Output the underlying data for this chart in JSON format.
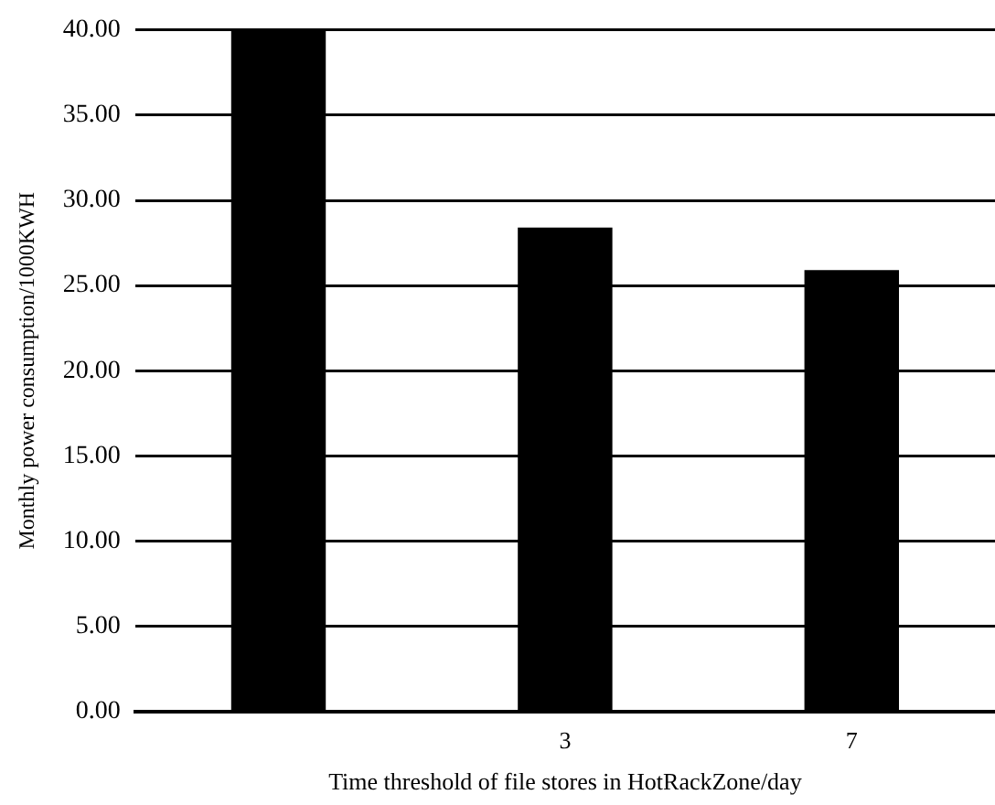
{
  "chart_data": {
    "type": "bar",
    "xlabel": "Time threshold of file stores in HotRackZone/day",
    "ylabel": "Monthly power consumption/1000KWH",
    "categories": [
      null,
      "3",
      "7"
    ],
    "series": [
      {
        "color": "#000000",
        "values": [
          40,
          28.4,
          25.9
        ]
      }
    ],
    "ylim": [
      0,
      40
    ],
    "yticks": [
      {
        "value": 0,
        "label": "0.00"
      },
      {
        "value": 5,
        "label": "5.00"
      },
      {
        "value": 10,
        "label": "10.00"
      },
      {
        "value": 15,
        "label": "15.00"
      },
      {
        "value": 20,
        "label": "20.00"
      },
      {
        "value": 25,
        "label": "25.00"
      },
      {
        "value": 30,
        "label": "30.00"
      },
      {
        "value": 35,
        "label": "35.00"
      },
      {
        "value": 40,
        "label": "40.00"
      }
    ],
    "grid": "y",
    "legend": false
  }
}
